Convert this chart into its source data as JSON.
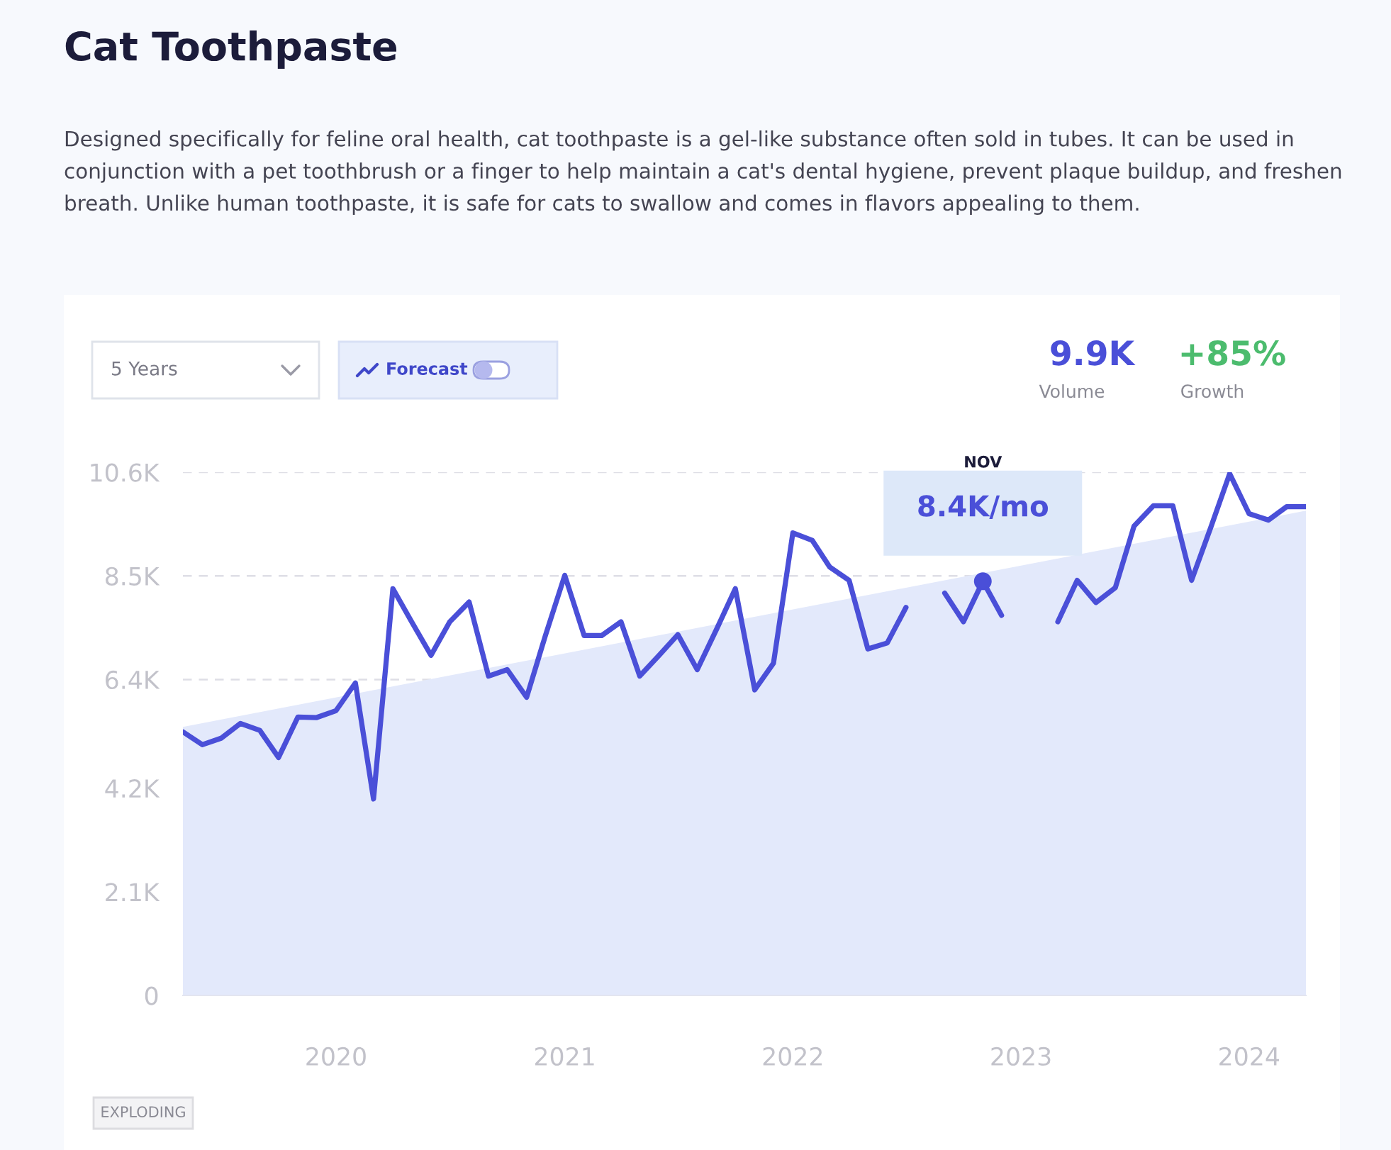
{
  "chart_data": {
    "type": "line",
    "title": "Cat Toothpaste",
    "subtitle": "Designed specifically for feline oral health, cat toothpaste is a gel-like substance often sold in tubes. It can be used in conjunction with a pet toothbrush or a finger to help maintain a cat's dental hygiene, prevent plaque buildup, and freshen breath. Unlike human toothpaste, it is safe for cats to swallow and comes in flavors appealing to them.",
    "x": [
      "2019-05",
      "2019-06",
      "2019-07",
      "2019-08",
      "2019-09",
      "2019-10",
      "2019-11",
      "2019-12",
      "2020-01",
      "2020-02",
      "2020-03",
      "2020-04",
      "2020-05",
      "2020-06",
      "2020-07",
      "2020-08",
      "2020-09",
      "2020-10",
      "2020-11",
      "2020-12",
      "2021-01",
      "2021-02",
      "2021-03",
      "2021-04",
      "2021-05",
      "2021-06",
      "2021-07",
      "2021-08",
      "2021-09",
      "2021-10",
      "2021-11",
      "2021-12",
      "2022-01",
      "2022-02",
      "2022-03",
      "2022-04",
      "2022-05",
      "2022-06",
      "2022-07",
      "2022-08",
      "2022-09",
      "2022-10",
      "2022-11",
      "2022-12",
      "2023-01",
      "2023-02",
      "2023-03",
      "2023-04",
      "2023-05",
      "2023-06",
      "2023-07",
      "2023-08",
      "2023-09",
      "2023-10",
      "2023-11",
      "2023-12",
      "2024-01",
      "2024-02",
      "2024-03",
      "2024-04"
    ],
    "series": [
      {
        "type": "area",
        "color": "#e3e9fb",
        "x": [
          "2019-05",
          "2024-04"
        ],
        "values": [
          5440,
          9820
        ]
      },
      {
        "color": "#4a4fd8",
        "values": [
          5340,
          5080,
          5210,
          5510,
          5370,
          4820,
          5640,
          5630,
          5770,
          6330,
          3980,
          8240,
          7570,
          6890,
          7570,
          7970,
          6470,
          6600,
          6040,
          7290,
          8510,
          7290,
          7290,
          7570,
          6470,
          6890,
          7310,
          6600,
          7420,
          8240,
          6190,
          6730,
          9370,
          9220,
          8680,
          8410,
          7020,
          7140,
          7860,
          null,
          8150,
          7570,
          8390,
          7700,
          null,
          null,
          7570,
          8410,
          7960,
          8260,
          9510,
          9920,
          9920,
          8410,
          9490,
          10570,
          9760,
          9630,
          9900,
          9900
        ]
      }
    ],
    "xlim": [
      "2019-05",
      "2024-04"
    ],
    "xticks": [
      {
        "value": "2020-01",
        "label": "2020"
      },
      {
        "value": "2021-01",
        "label": "2021"
      },
      {
        "value": "2022-01",
        "label": "2022"
      },
      {
        "value": "2023-01",
        "label": "2023"
      },
      {
        "value": "2024-01",
        "label": "2024"
      }
    ],
    "ylim": [
      0,
      10600
    ],
    "yticks": [
      0,
      {
        "value": 2100,
        "label": "2.1K"
      },
      {
        "value": 4200,
        "label": "4.2K"
      },
      {
        "value": 6400,
        "label": "6.4K"
      },
      {
        "value": 8500,
        "label": "8.5K"
      },
      {
        "value": 10600,
        "label": "10.6K"
      }
    ],
    "grid": "y",
    "legend": false,
    "marker": "none",
    "line_style": "solid",
    "annotations": [
      "NOV",
      {
        "text": "8.4K/mo",
        "x": "2022-11",
        "y": 8390
      },
      "5 Years",
      "Forecast",
      "9.9K",
      "Volume",
      "+85%",
      "Growth",
      "EXPLODING"
    ]
  }
}
